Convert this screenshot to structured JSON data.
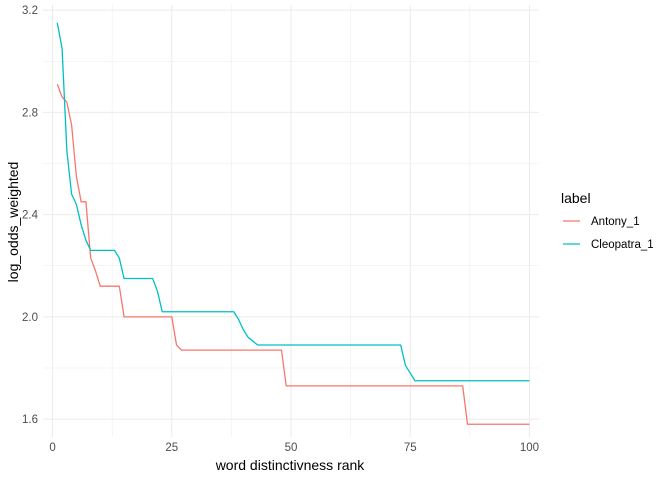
{
  "chart_data": {
    "type": "line",
    "xlabel": "word distinctivness rank",
    "ylabel": "log_odds_weighted",
    "xlim": [
      -2,
      102
    ],
    "ylim": [
      1.53,
      3.22
    ],
    "x_ticks": [
      0,
      25,
      50,
      75,
      100
    ],
    "y_ticks": [
      1.6,
      2.0,
      2.4,
      2.8,
      3.2
    ],
    "x_tick_labels": [
      "0",
      "25",
      "50",
      "75",
      "100"
    ],
    "y_tick_labels": [
      "1.6",
      "2.0",
      "2.4",
      "2.8",
      "3.2"
    ],
    "grid": true,
    "legend": {
      "title": "label",
      "position": "right"
    },
    "series": [
      {
        "name": "Antony_1",
        "color": "#F8766D",
        "points": [
          [
            1,
            2.91
          ],
          [
            2,
            2.86
          ],
          [
            3,
            2.84
          ],
          [
            4,
            2.75
          ],
          [
            5,
            2.55
          ],
          [
            6,
            2.45
          ],
          [
            7,
            2.45
          ],
          [
            8,
            2.23
          ],
          [
            9,
            2.18
          ],
          [
            10,
            2.12
          ],
          [
            14,
            2.12
          ],
          [
            15,
            2.0
          ],
          [
            25,
            2.0
          ],
          [
            26,
            1.89
          ],
          [
            27,
            1.87
          ],
          [
            48,
            1.87
          ],
          [
            49,
            1.73
          ],
          [
            86,
            1.73
          ],
          [
            87,
            1.58
          ],
          [
            100,
            1.58
          ]
        ]
      },
      {
        "name": "Cleopatra_1",
        "color": "#00BFC4",
        "points": [
          [
            1,
            3.15
          ],
          [
            2,
            3.05
          ],
          [
            3,
            2.65
          ],
          [
            4,
            2.48
          ],
          [
            5,
            2.44
          ],
          [
            6,
            2.36
          ],
          [
            7,
            2.3
          ],
          [
            8,
            2.26
          ],
          [
            13,
            2.26
          ],
          [
            14,
            2.23
          ],
          [
            15,
            2.15
          ],
          [
            21,
            2.15
          ],
          [
            22,
            2.1
          ],
          [
            23,
            2.02
          ],
          [
            38,
            2.02
          ],
          [
            39,
            1.99
          ],
          [
            40,
            1.95
          ],
          [
            41,
            1.92
          ],
          [
            43,
            1.89
          ],
          [
            73,
            1.89
          ],
          [
            74,
            1.81
          ],
          [
            75,
            1.78
          ],
          [
            76,
            1.75
          ],
          [
            100,
            1.75
          ]
        ]
      }
    ]
  }
}
